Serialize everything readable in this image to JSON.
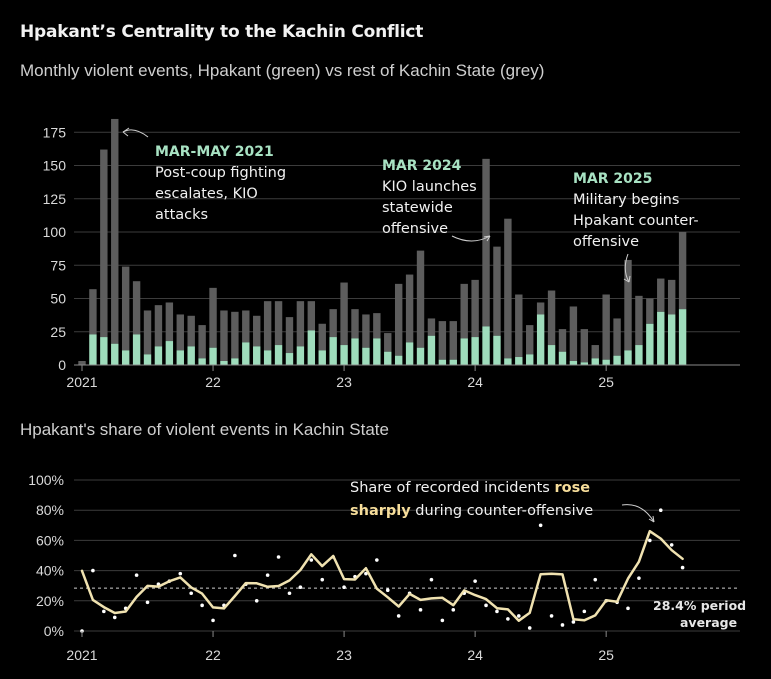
{
  "title": "Hpakant’s Centrality to the Kachin Conflict",
  "subtitle": "Monthly violent events, Hpakant (green) vs rest of Kachin State (grey)",
  "section2_title": "Hpakant's share of violent events in Kachin State",
  "colors": {
    "hpakant_bar": "#9fdcbc",
    "rest_bar": "#5d5d5d",
    "share_line": "#f0e2b0",
    "share_dots": "#ffffff",
    "grid": "#3c3c3c",
    "annotation_head": "#a8e2c3",
    "highlight_text": "#f6dd9a"
  },
  "chart_data": [
    {
      "type": "bar",
      "stacked": true,
      "ylim": [
        0,
        185
      ],
      "yticks": [
        0,
        25,
        50,
        75,
        100,
        125,
        150,
        175
      ],
      "x_tick_labels": [
        "2021",
        "22",
        "23",
        "24",
        "25"
      ],
      "x_tick_months": [
        "2021-01",
        "2022-01",
        "2023-01",
        "2024-01",
        "2025-01"
      ],
      "months": [
        "2021-01",
        "2021-02",
        "2021-03",
        "2021-04",
        "2021-05",
        "2021-06",
        "2021-07",
        "2021-08",
        "2021-09",
        "2021-10",
        "2021-11",
        "2021-12",
        "2022-01",
        "2022-02",
        "2022-03",
        "2022-04",
        "2022-05",
        "2022-06",
        "2022-07",
        "2022-08",
        "2022-09",
        "2022-10",
        "2022-11",
        "2022-12",
        "2023-01",
        "2023-02",
        "2023-03",
        "2023-04",
        "2023-05",
        "2023-06",
        "2023-07",
        "2023-08",
        "2023-09",
        "2023-10",
        "2023-11",
        "2023-12",
        "2024-01",
        "2024-02",
        "2024-03",
        "2024-04",
        "2024-05",
        "2024-06",
        "2024-07",
        "2024-08",
        "2024-09",
        "2024-10",
        "2024-11",
        "2024-12",
        "2025-01",
        "2025-02",
        "2025-03",
        "2025-04",
        "2025-05",
        "2025-06",
        "2025-07",
        "2025-08",
        "2025-09"
      ],
      "series": [
        {
          "name": "Hpakant",
          "values": [
            0,
            23,
            21,
            16,
            11,
            23,
            8,
            14,
            18,
            11,
            14,
            5,
            13,
            3,
            5,
            17,
            14,
            11,
            15,
            9,
            14,
            26,
            11,
            21,
            15,
            20,
            13,
            20,
            10,
            7,
            17,
            13,
            22,
            4,
            4,
            20,
            21,
            29,
            22,
            5,
            6,
            8,
            38,
            15,
            10,
            3,
            2,
            5,
            4,
            7,
            11,
            15,
            31,
            40,
            38,
            42,
            0
          ]
        },
        {
          "name": "Rest of Kachin State",
          "values": [
            3,
            34,
            141,
            169,
            63,
            40,
            33,
            31,
            29,
            27,
            23,
            25,
            45,
            38,
            35,
            24,
            23,
            37,
            33,
            27,
            34,
            22,
            20,
            21,
            47,
            22,
            25,
            19,
            14,
            54,
            51,
            73,
            13,
            29,
            29,
            41,
            43,
            126,
            67,
            105,
            47,
            22,
            9,
            41,
            17,
            41,
            25,
            10,
            49,
            28,
            68,
            37,
            19,
            25,
            26,
            58,
            0
          ]
        }
      ]
    },
    {
      "type": "line",
      "ylim": [
        0,
        100
      ],
      "ylabel_format": "percent",
      "yticks": [
        0,
        20,
        40,
        60,
        80,
        100
      ],
      "x_tick_labels": [
        "2021",
        "22",
        "23",
        "24",
        "25"
      ],
      "x_tick_months": [
        "2021-01",
        "2022-01",
        "2023-01",
        "2024-01",
        "2025-01"
      ],
      "period_average": 28.4,
      "series": [
        {
          "name": "3-month rolling share (%)",
          "values": [
            39.9,
            20.6,
            15.8,
            11.9,
            12.9,
            22.6,
            29.9,
            29.4,
            33.0,
            35.5,
            28.9,
            24.8,
            15.6,
            15.0,
            23.2,
            31.7,
            31.6,
            29.3,
            29.8,
            33.5,
            40.4,
            50.8,
            43.0,
            49.7,
            34.4,
            34.1,
            41.6,
            28.1,
            22.3,
            16.2,
            24.6,
            20.6,
            21.6,
            22.0,
            17.1,
            26.9,
            23.8,
            21.1,
            15.1,
            14.3,
            6.8,
            12.0,
            37.6,
            37.9,
            37.5,
            7.8,
            7.1,
            10.3,
            20.3,
            19.4,
            34.7,
            45.9,
            66.1,
            61.2,
            53.5,
            47.8
          ]
        }
      ],
      "monthly_share_dots": [
        0,
        40,
        13,
        9,
        15,
        37,
        19,
        31,
        33,
        38,
        25,
        17,
        7,
        17,
        50,
        31,
        20,
        37,
        49,
        25,
        29,
        47,
        34,
        49,
        29,
        36,
        38,
        47,
        27,
        10,
        25,
        14,
        34,
        7,
        14,
        25,
        33,
        17,
        13,
        8,
        10,
        2,
        70,
        10,
        4,
        6,
        13,
        34,
        20,
        19,
        15,
        35,
        60,
        80,
        57,
        42
      ]
    }
  ],
  "annotations": {
    "a1": {
      "head": "MAR-MAY 2021",
      "line1": "Post-coup fighting",
      "line2": "escalates, KIO",
      "line3": "attacks"
    },
    "a2": {
      "head": "MAR 2024",
      "line1": "KIO launches",
      "line2": "statewide",
      "line3": "offensive"
    },
    "a3": {
      "head": "MAR 2025",
      "line1": "Military begins",
      "line2": "Hpakant counter-",
      "line3": "offensive"
    },
    "share_note": {
      "part1": "Share of recorded incidents ",
      "highlight1": "rose",
      "highlight2": "sharply",
      "part2": " during counter-offensive"
    },
    "average": {
      "line1": "28.4% period",
      "line2": "average"
    }
  }
}
